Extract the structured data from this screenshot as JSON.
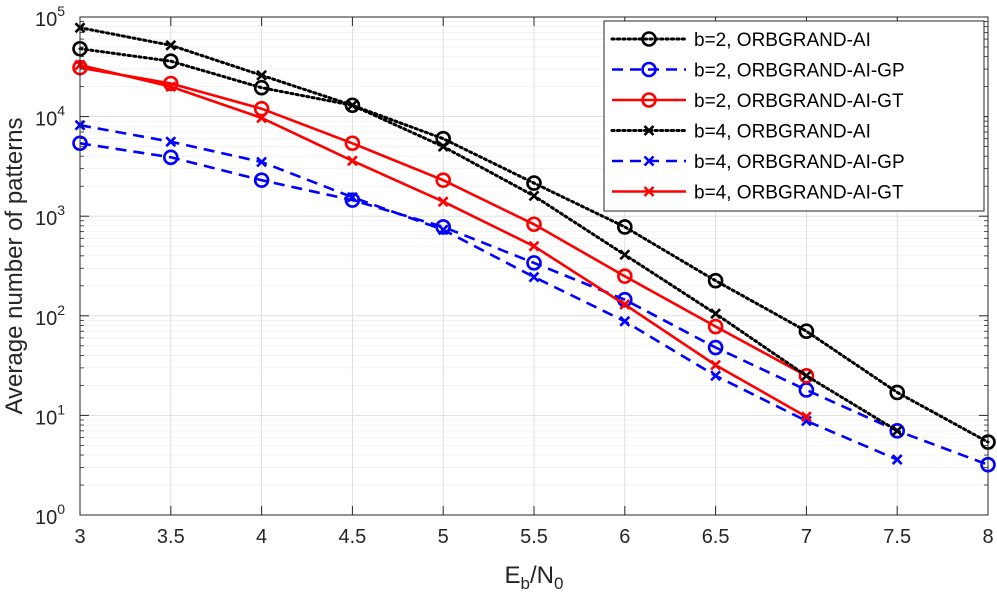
{
  "chart_data": {
    "type": "line",
    "title": "",
    "xlabel": "E_b/N_0",
    "xlabel_main": "E",
    "xlabel_sub1": "b",
    "xlabel_mid": "/N",
    "xlabel_sub2": "0",
    "ylabel": "Average number of patterns",
    "xlim": [
      3,
      8
    ],
    "ylim": [
      1,
      100000
    ],
    "yscale": "log",
    "grid": true,
    "legend_position": "top-right",
    "xticks": [
      3,
      3.5,
      4,
      4.5,
      5,
      5.5,
      6,
      6.5,
      7,
      7.5,
      8
    ],
    "xtick_labels": [
      "3",
      "3.5",
      "4",
      "4.5",
      "5",
      "5.5",
      "6",
      "6.5",
      "7",
      "7.5",
      "8"
    ],
    "yticks": [
      {
        "value": 1,
        "base": "10",
        "exp": "0"
      },
      {
        "value": 10,
        "base": "10",
        "exp": "1"
      },
      {
        "value": 100,
        "base": "10",
        "exp": "2"
      },
      {
        "value": 1000,
        "base": "10",
        "exp": "3"
      },
      {
        "value": 10000,
        "base": "10",
        "exp": "4"
      },
      {
        "value": 100000,
        "base": "10",
        "exp": "5"
      }
    ],
    "series": [
      {
        "name": "b=2, ORBGRAND-AI",
        "color": "#000000",
        "line": "dotted",
        "marker": "circle",
        "x": [
          3,
          3.5,
          4,
          4.5,
          5,
          5.5,
          6,
          6.5,
          7,
          7.5,
          8
        ],
        "y": [
          48000,
          36000,
          19500,
          13000,
          6000,
          2150,
          780,
          225,
          70,
          17,
          5.4
        ]
      },
      {
        "name": "b=2, ORBGRAND-AI-GP",
        "color": "#0000ff",
        "line": "dashed",
        "marker": "circle",
        "x": [
          3,
          3.5,
          4,
          4.5,
          5,
          5.5,
          6,
          6.5,
          7,
          7.5,
          8
        ],
        "y": [
          5400,
          3900,
          2300,
          1450,
          780,
          340,
          145,
          48,
          18,
          7,
          3.2
        ]
      },
      {
        "name": "b=2, ORBGRAND-AI-GT",
        "color": "#ff0000",
        "line": "solid",
        "marker": "circle",
        "x": [
          3,
          3.5,
          4,
          4.5,
          5,
          5.5,
          6,
          6.5,
          7
        ],
        "y": [
          31000,
          21500,
          12000,
          5400,
          2300,
          830,
          250,
          78,
          25
        ]
      },
      {
        "name": "b=4, ORBGRAND-AI",
        "color": "#000000",
        "line": "dotted",
        "marker": "x",
        "x": [
          3,
          3.5,
          4,
          4.5,
          5,
          5.5,
          6,
          6.5,
          7,
          7.5
        ],
        "y": [
          78000,
          52000,
          26000,
          13000,
          5000,
          1600,
          410,
          105,
          25,
          7
        ]
      },
      {
        "name": "b=4, ORBGRAND-AI-GP",
        "color": "#0000ff",
        "line": "dashed",
        "marker": "x",
        "x": [
          3,
          3.5,
          4,
          4.5,
          5,
          5.5,
          6,
          6.5,
          7,
          7.5
        ],
        "y": [
          8200,
          5600,
          3500,
          1550,
          730,
          245,
          88,
          25,
          8.8,
          3.6
        ]
      },
      {
        "name": "b=4, ORBGRAND-AI-GT",
        "color": "#ff0000",
        "line": "solid",
        "marker": "x",
        "x": [
          3,
          3.5,
          4,
          4.5,
          5,
          5.5,
          6,
          6.5,
          7
        ],
        "y": [
          33000,
          20000,
          9700,
          3600,
          1400,
          500,
          130,
          32,
          9.7
        ]
      }
    ]
  }
}
